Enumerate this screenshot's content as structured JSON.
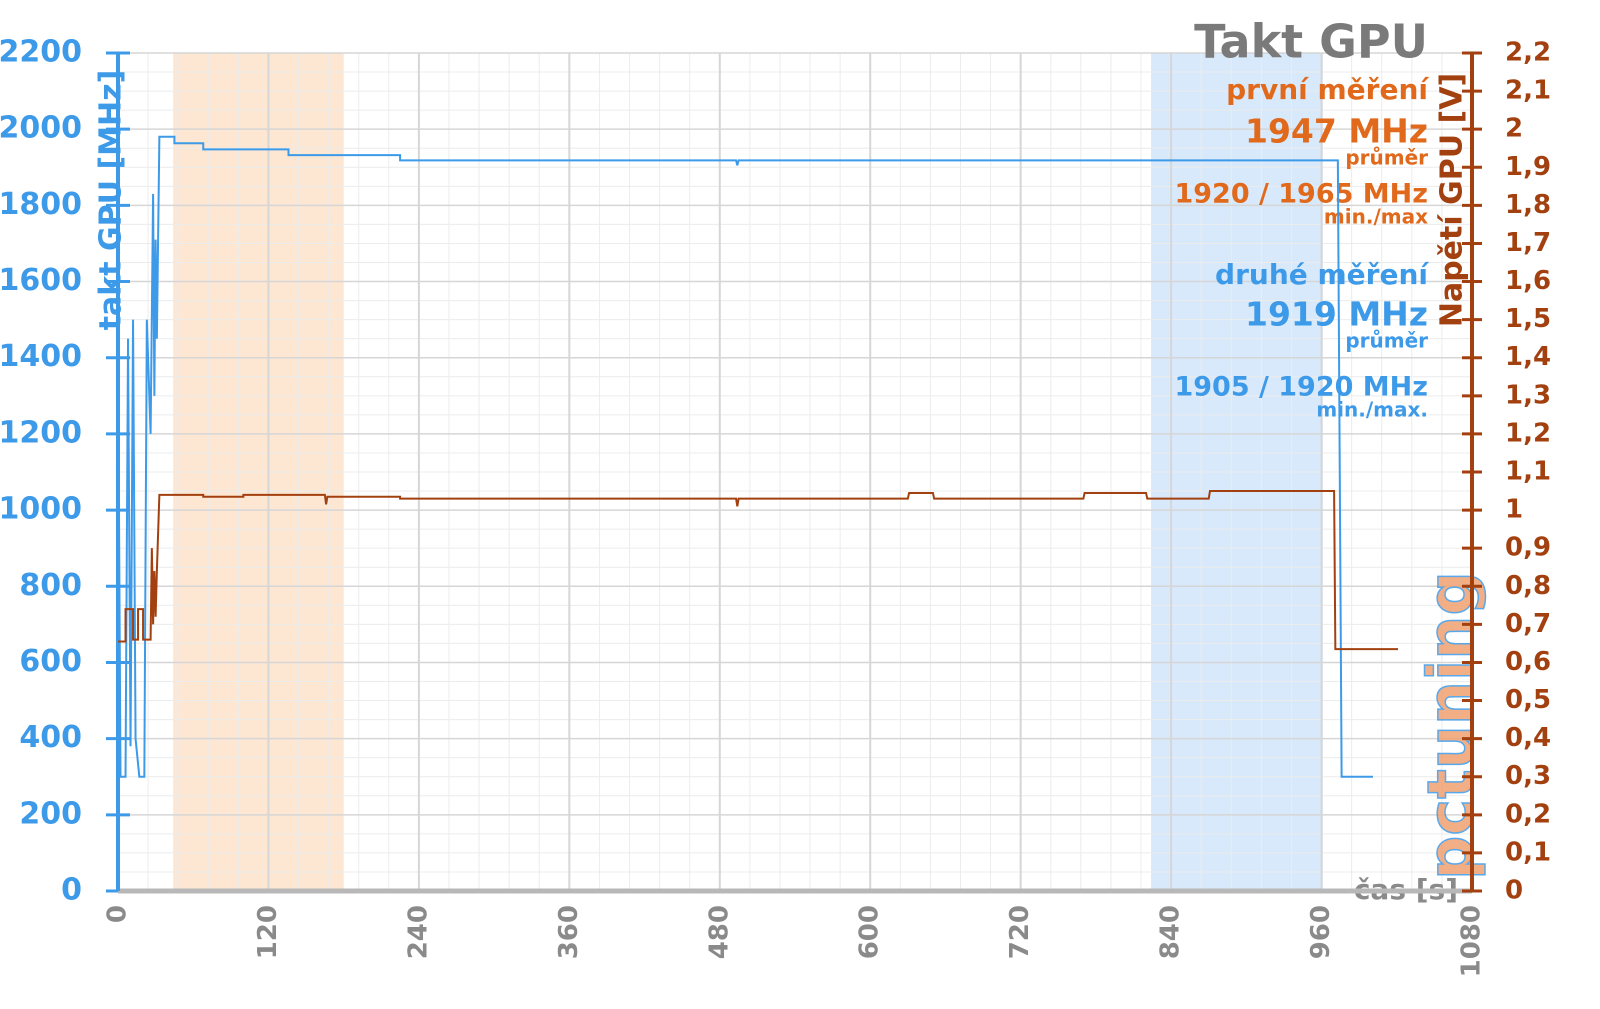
{
  "chart_data": {
    "type": "line",
    "title": "Takt GPU",
    "annotations": [
      "první měření",
      "1947 MHz",
      "průměr",
      "1920 / 1965 MHz",
      "min./max",
      "druhé měření",
      "1919 MHz",
      "průměr",
      "1905 / 1920 MHz",
      "min./max."
    ],
    "logo": "pctuning",
    "x_label": "čas [s]",
    "y_label": "takt GPU [MHz]",
    "y2_label": "Napětí GPU [V]",
    "xlim": [
      0,
      1080
    ],
    "xticks": [
      0,
      120,
      240,
      360,
      480,
      600,
      720,
      840,
      960,
      1080
    ],
    "ylim": [
      0,
      2200
    ],
    "yticks": [
      0,
      200,
      400,
      600,
      800,
      1000,
      1200,
      1400,
      1600,
      1800,
      2000,
      2200
    ],
    "y2lim": [
      0,
      2.2
    ],
    "y2ticks": [
      0,
      {
        "value": 0.1,
        "label": "0,1"
      },
      {
        "value": 0.2,
        "label": "0,2"
      },
      {
        "value": 0.3,
        "label": "0,3"
      },
      {
        "value": 0.4,
        "label": "0,4"
      },
      {
        "value": 0.5,
        "label": "0,5"
      },
      {
        "value": 0.6,
        "label": "0,6"
      },
      {
        "value": 0.7,
        "label": "0,7"
      },
      {
        "value": 0.8,
        "label": "0,8"
      },
      {
        "value": 0.9,
        "label": "0,9"
      },
      1,
      {
        "value": 1.1,
        "label": "1,1"
      },
      {
        "value": 1.2,
        "label": "1,2"
      },
      {
        "value": 1.3,
        "label": "1,3"
      },
      {
        "value": 1.4,
        "label": "1,4"
      },
      {
        "value": 1.5,
        "label": "1,5"
      },
      {
        "value": 1.6,
        "label": "1,6"
      },
      {
        "value": 1.7,
        "label": "1,7"
      },
      {
        "value": 1.8,
        "label": "1,8"
      },
      {
        "value": 1.9,
        "label": "1,9"
      },
      2,
      {
        "value": 2.1,
        "label": "2,1"
      },
      {
        "value": 2.2,
        "label": "2,2"
      }
    ],
    "grid": true,
    "highlight_ranges": [
      {
        "range": [
          44,
          180
        ],
        "color": "#fde6d2"
      },
      {
        "range": [
          824,
          961
        ],
        "color": "#d8e9fb"
      }
    ],
    "series": [
      {
        "color": "#3d9ae8",
        "axis": "y",
        "x": [
          0,
          2,
          6,
          8,
          10,
          12,
          14,
          17,
          21,
          23,
          26,
          28,
          29,
          30,
          31,
          33,
          45,
          45,
          68,
          68,
          136,
          136,
          225,
          225,
          493,
          494,
          495,
          973,
          976,
          1001
        ],
        "values": [
          1450,
          300,
          300,
          1450,
          380,
          1500,
          400,
          300,
          300,
          1500,
          1200,
          1830,
          1300,
          1710,
          1450,
          1980,
          1980,
          1963,
          1963,
          1947,
          1947,
          1932,
          1932,
          1918,
          1918,
          1905,
          1918,
          1918,
          300,
          300
        ]
      },
      {
        "color": "#a3400f",
        "axis": "y2",
        "x": [
          0,
          6,
          6,
          12,
          12,
          16,
          16,
          20,
          20,
          26,
          27,
          28,
          29,
          30,
          31,
          33,
          68,
          68,
          100,
          100,
          165,
          166,
          167,
          225,
          225,
          493,
          494,
          495,
          630,
          631,
          650,
          651,
          770,
          771,
          820,
          821,
          870,
          871,
          970,
          971,
          1021
        ],
        "values": [
          0.655,
          0.655,
          0.74,
          0.74,
          0.66,
          0.66,
          0.74,
          0.74,
          0.66,
          0.66,
          0.9,
          0.7,
          0.84,
          0.72,
          0.84,
          1.04,
          1.04,
          1.035,
          1.035,
          1.04,
          1.04,
          1.015,
          1.035,
          1.035,
          1.03,
          1.03,
          1.01,
          1.03,
          1.03,
          1.045,
          1.045,
          1.03,
          1.03,
          1.045,
          1.045,
          1.03,
          1.03,
          1.05,
          1.05,
          0.635,
          0.635
        ]
      }
    ]
  }
}
